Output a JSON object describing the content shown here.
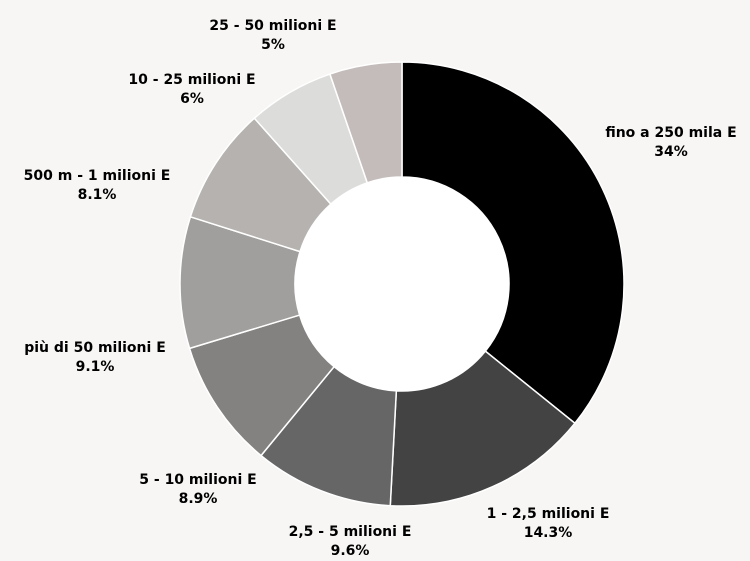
{
  "chart_data": {
    "type": "pie",
    "donut": true,
    "title": "",
    "categories": [
      "fino a 250 mila E",
      "1 - 2,5 milioni E",
      "2,5 - 5 milioni E",
      "5 - 10 milioni E",
      "più di 50 milioni E",
      "500 m - 1 milioni E",
      "10 - 25 milioni E",
      "25 - 50 milioni E"
    ],
    "values": [
      34,
      14.3,
      9.6,
      8.9,
      9.1,
      8.1,
      6,
      5
    ],
    "value_labels": [
      "34%",
      "14.3%",
      "9.6%",
      "8.9%",
      "9.1%",
      "8.1%",
      "6%",
      "5%"
    ],
    "colors": [
      "#000000",
      "#434343",
      "#666666",
      "#838280",
      "#a19f9d",
      "#b5b2b0",
      "#dcdcdb",
      "#c4bcba",
      "#a9a9a9"
    ],
    "slice_colors": [
      "#000000",
      "#434343",
      "#666666",
      "#838280",
      "#a19f9d",
      "#b5b2b0",
      "#dcdcdb",
      "#c4bcba",
      "#a9a9a9"
    ],
    "legend": "none",
    "background": "#f7f6f4"
  }
}
